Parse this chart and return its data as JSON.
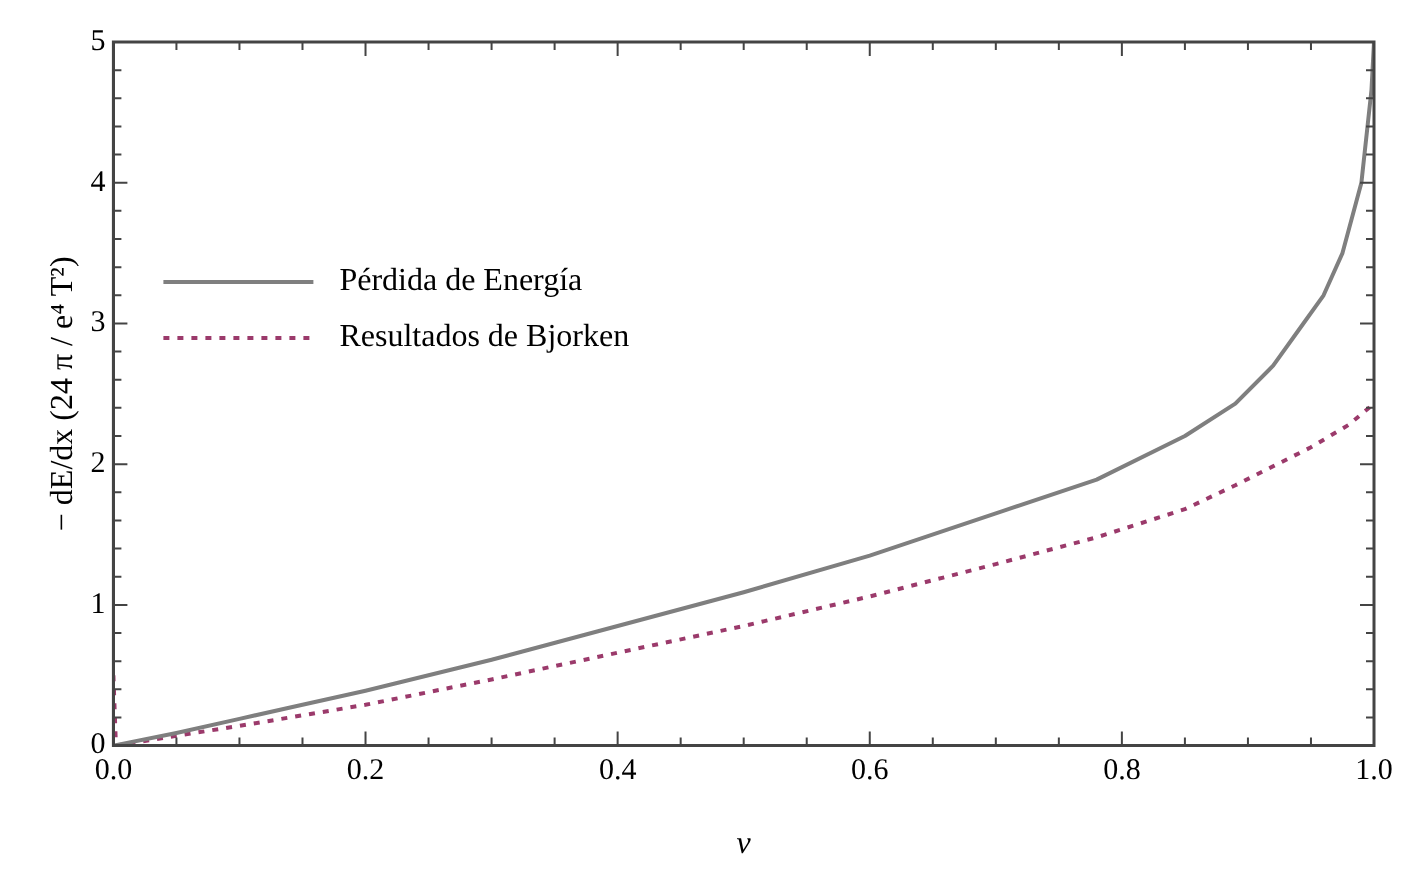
{
  "chart_data": {
    "type": "line",
    "xlabel": "v",
    "ylabel": "− dE/dx (24 π / e⁴ T²)",
    "xlim": [
      0,
      1
    ],
    "ylim": [
      0,
      5
    ],
    "xticks": [
      {
        "value": 0,
        "label": "0.0"
      },
      {
        "value": 0.05,
        "label": null
      },
      {
        "value": 0.1,
        "label": null
      },
      {
        "value": 0.15,
        "label": null
      },
      {
        "value": 0.2,
        "label": "0.2"
      },
      {
        "value": 0.25,
        "label": null
      },
      {
        "value": 0.3,
        "label": null
      },
      {
        "value": 0.35,
        "label": null
      },
      {
        "value": 0.4,
        "label": "0.4"
      },
      {
        "value": 0.45,
        "label": null
      },
      {
        "value": 0.5,
        "label": null
      },
      {
        "value": 0.55,
        "label": null
      },
      {
        "value": 0.6,
        "label": "0.6"
      },
      {
        "value": 0.65,
        "label": null
      },
      {
        "value": 0.7,
        "label": null
      },
      {
        "value": 0.75,
        "label": null
      },
      {
        "value": 0.8,
        "label": "0.8"
      },
      {
        "value": 0.85,
        "label": null
      },
      {
        "value": 0.9,
        "label": null
      },
      {
        "value": 0.95,
        "label": null
      },
      {
        "value": 1,
        "label": "1.0"
      }
    ],
    "yticks": [
      0,
      {
        "value": 0.2,
        "label": null
      },
      {
        "value": 0.4,
        "label": null
      },
      {
        "value": 0.6,
        "label": null
      },
      {
        "value": 0.8,
        "label": null
      },
      1,
      {
        "value": 1.2,
        "label": null
      },
      {
        "value": 1.4,
        "label": null
      },
      {
        "value": 1.6,
        "label": null
      },
      {
        "value": 1.8,
        "label": null
      },
      2,
      {
        "value": 2.2,
        "label": null
      },
      {
        "value": 2.4,
        "label": null
      },
      {
        "value": 2.6,
        "label": null
      },
      {
        "value": 2.8,
        "label": null
      },
      3,
      {
        "value": 3.2,
        "label": null
      },
      {
        "value": 3.4,
        "label": null
      },
      {
        "value": 3.6,
        "label": null
      },
      {
        "value": 3.8,
        "label": null
      },
      4,
      {
        "value": 4.2,
        "label": null
      },
      {
        "value": 4.4,
        "label": null
      },
      {
        "value": 4.6,
        "label": null
      },
      {
        "value": 4.8,
        "label": null
      },
      5
    ],
    "legend": "top left",
    "grid": false,
    "marker": "none",
    "series": [
      {
        "name": "Pérdida de Energía",
        "color": "#7f7f7f",
        "line_style": "solid",
        "x": [
          0,
          0.05,
          0.1,
          0.15,
          0.2,
          0.3,
          0.4,
          0.5,
          0.6,
          0.7,
          0.78,
          0.85,
          0.89,
          0.92,
          0.94,
          0.96,
          0.975,
          0.99,
          0.998,
          1
        ],
        "values": [
          0,
          0.09,
          0.19,
          0.29,
          0.39,
          0.61,
          0.85,
          1.09,
          1.35,
          1.65,
          1.89,
          2.2,
          2.43,
          2.7,
          2.95,
          3.2,
          3.5,
          4.0,
          4.66,
          5.0
        ]
      },
      {
        "name": "Resultados de Bjorken",
        "color": "#9b3a6b",
        "line_style": "dotted",
        "x": [
          0,
          0.002,
          0.05,
          0.1,
          0.2,
          0.3,
          0.4,
          0.5,
          0.6,
          0.7,
          0.78,
          0.85,
          0.89,
          0.95,
          0.98,
          1
        ],
        "values": [
          0.5,
          0,
          0.07,
          0.14,
          0.29,
          0.47,
          0.66,
          0.85,
          1.06,
          1.29,
          1.48,
          1.68,
          1.85,
          2.12,
          2.28,
          2.43
        ]
      }
    ]
  }
}
